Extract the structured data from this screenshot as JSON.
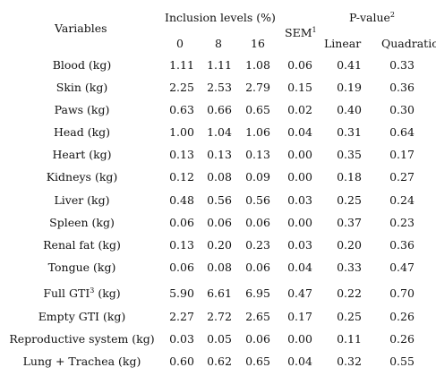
{
  "header": {
    "variables": "Variables",
    "inclusion_levels": "Inclusion levels (%)",
    "levels": [
      "0",
      "8",
      "16"
    ],
    "sem": "SEM",
    "sem_sup": "1",
    "pvalue": "P-value",
    "pvalue_sup": "2",
    "linear": "Linear",
    "quadratic": "Quadratic"
  },
  "rows": [
    {
      "variable": "Blood (kg)",
      "l0": "1.11",
      "l8": "1.11",
      "l16": "1.08",
      "sem": "0.06",
      "linear": "0.41",
      "quadratic": "0.33"
    },
    {
      "variable": "Skin (kg)",
      "l0": "2.25",
      "l8": "2.53",
      "l16": "2.79",
      "sem": "0.15",
      "linear": "0.19",
      "quadratic": "0.36"
    },
    {
      "variable": "Paws (kg)",
      "l0": "0.63",
      "l8": "0.66",
      "l16": "0.65",
      "sem": "0.02",
      "linear": "0.40",
      "quadratic": "0.30"
    },
    {
      "variable": "Head (kg)",
      "l0": "1.00",
      "l8": "1.04",
      "l16": "1.06",
      "sem": "0.04",
      "linear": "0.31",
      "quadratic": "0.64"
    },
    {
      "variable": "Heart (kg)",
      "l0": "0.13",
      "l8": "0.13",
      "l16": "0.13",
      "sem": "0.00",
      "linear": "0.35",
      "quadratic": "0.17"
    },
    {
      "variable": "Kidneys (kg)",
      "l0": "0.12",
      "l8": "0.08",
      "l16": "0.09",
      "sem": "0.00",
      "linear": "0.18",
      "quadratic": "0.27"
    },
    {
      "variable": "Liver (kg)",
      "l0": "0.48",
      "l8": "0.56",
      "l16": "0.56",
      "sem": "0.03",
      "linear": "0.25",
      "quadratic": "0.24"
    },
    {
      "variable": "Spleen (kg)",
      "l0": "0.06",
      "l8": "0.06",
      "l16": "0.06",
      "sem": "0.00",
      "linear": "0.37",
      "quadratic": "0.23"
    },
    {
      "variable": "Renal fat (kg)",
      "l0": "0.13",
      "l8": "0.20",
      "l16": "0.23",
      "sem": "0.03",
      "linear": "0.20",
      "quadratic": "0.36"
    },
    {
      "variable": "Tongue (kg)",
      "l0": "0.06",
      "l8": "0.08",
      "l16": "0.06",
      "sem": "0.04",
      "linear": "0.33",
      "quadratic": "0.47"
    },
    {
      "variable": "Full GTI",
      "variable_sup": "3",
      "variable_suffix": " (kg)",
      "l0": "5.90",
      "l8": "6.61",
      "l16": "6.95",
      "sem": "0.47",
      "linear": "0.22",
      "quadratic": "0.70"
    },
    {
      "variable": "Empty GTI (kg)",
      "l0": "2.27",
      "l8": "2.72",
      "l16": "2.65",
      "sem": "0.17",
      "linear": "0.25",
      "quadratic": "0.26"
    },
    {
      "variable": "Reproductive system (kg)",
      "l0": "0.03",
      "l8": "0.05",
      "l16": "0.06",
      "sem": "0.00",
      "linear": "0.11",
      "quadratic": "0.26"
    },
    {
      "variable": "Lung + Trachea (kg)",
      "l0": "0.60",
      "l8": "0.62",
      "l16": "0.65",
      "sem": "0.04",
      "linear": "0.32",
      "quadratic": "0.55"
    }
  ]
}
